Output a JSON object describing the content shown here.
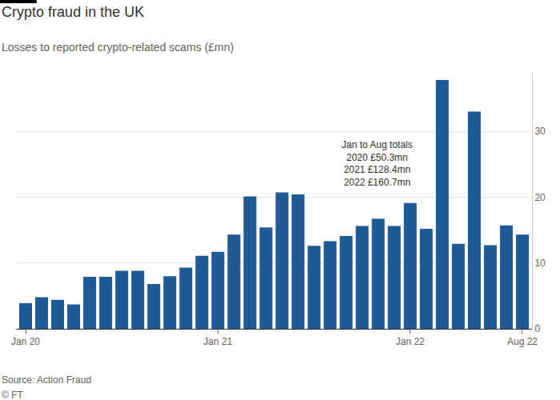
{
  "chart_data": {
    "type": "bar",
    "title": "Crypto fraud in the UK",
    "subtitle": "Losses to reported crypto-related scams (£mn)",
    "source": "Source: Action Fraud",
    "credit": "© FT",
    "annotation": [
      "Jan to Aug totals",
      "2020 £50.3mn",
      "2021 £128.4mn",
      "2022 £160.7mn"
    ],
    "categories": [
      "Jan 20",
      null,
      null,
      null,
      null,
      null,
      null,
      null,
      null,
      null,
      null,
      null,
      "Jan 21",
      null,
      null,
      null,
      null,
      null,
      null,
      null,
      null,
      null,
      null,
      null,
      "Jan 22",
      null,
      null,
      null,
      null,
      null,
      null,
      "Aug 22"
    ],
    "values": [
      3.9,
      4.8,
      4.4,
      3.7,
      7.9,
      7.9,
      8.8,
      8.8,
      6.8,
      8.0,
      9.3,
      11.1,
      11.7,
      14.3,
      20.1,
      15.4,
      20.7,
      20.4,
      12.6,
      13.3,
      14.1,
      15.6,
      16.7,
      15.6,
      19.1,
      15.2,
      37.8,
      12.9,
      33.0,
      12.7,
      15.7,
      14.3
    ],
    "color": "#1f5a96",
    "ylim": [
      0,
      39
    ],
    "yticks": [
      0,
      10,
      20,
      30
    ],
    "grid": true
  }
}
